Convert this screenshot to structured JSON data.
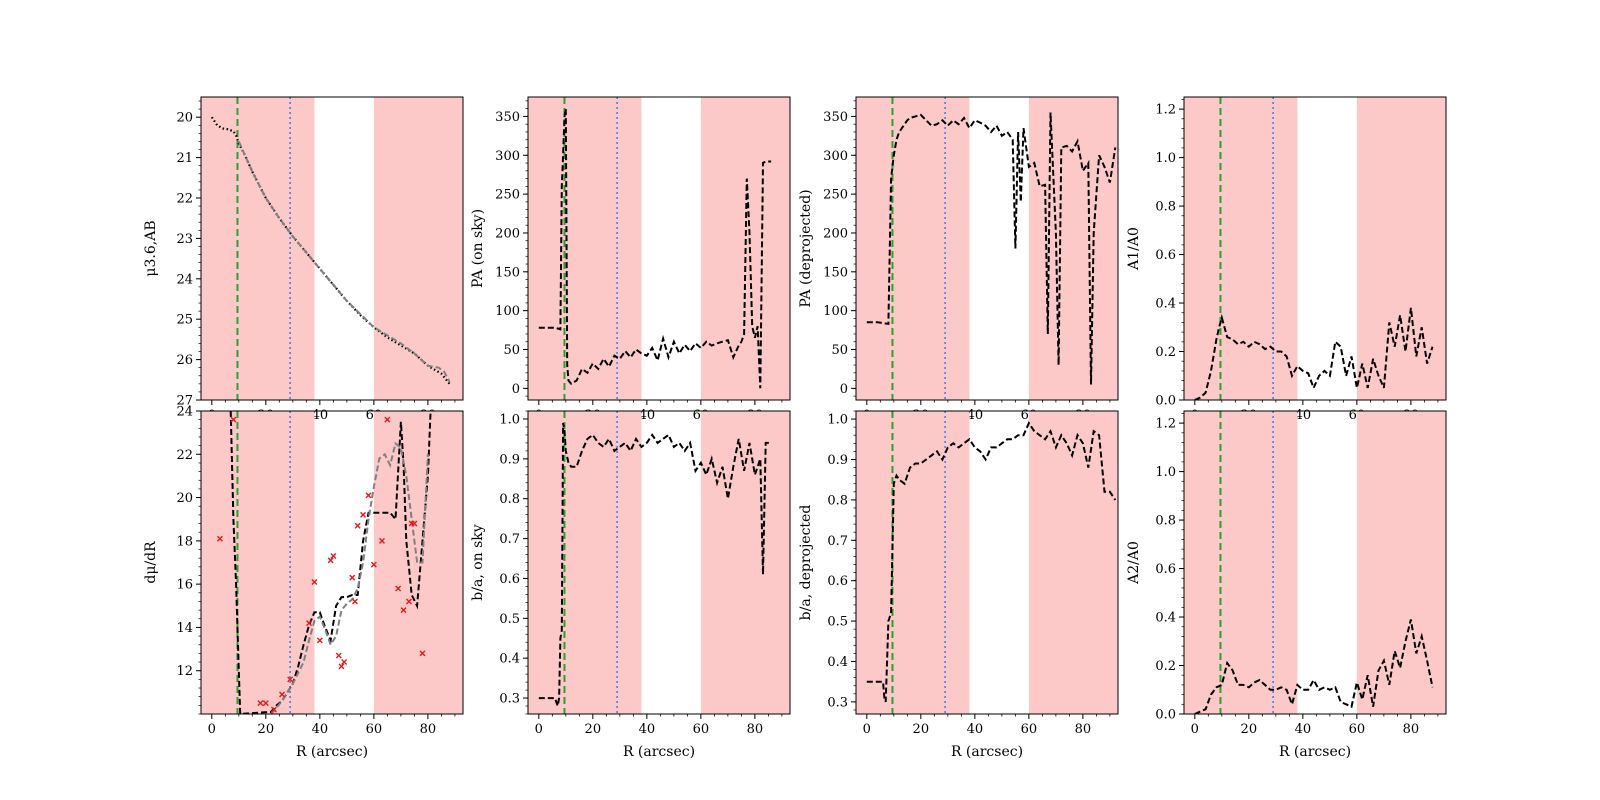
{
  "figure": {
    "common_xlabel": "R (arcsec)",
    "shade_color": "#fcc8c8",
    "green_line_color": "#2ca02c",
    "blue_line_color": "#4a7fe0",
    "markers": {
      "green_dashed_R": 9.5,
      "blue_dotted_R": 29
    },
    "shaded_R_ranges": [
      [
        -4,
        38
      ],
      [
        60,
        93
      ]
    ]
  },
  "chart_data": [
    {
      "id": "mu",
      "type": "line",
      "ylabel": "μ3.6,AB",
      "xlim": [
        -4,
        93
      ],
      "ylim": [
        27,
        19.5
      ],
      "yticks": [
        20,
        21,
        22,
        23,
        24,
        25,
        26,
        27
      ],
      "xticks": [
        0,
        20,
        40,
        60,
        80
      ],
      "show_xlabel": false,
      "series": [
        {
          "style": "dotted-black",
          "x": [
            0,
            2,
            4,
            6,
            8,
            9,
            10,
            12,
            15,
            20,
            25,
            30,
            35,
            40,
            45,
            50,
            55,
            60,
            65,
            70,
            75,
            80,
            85,
            88
          ],
          "y": [
            20.0,
            20.2,
            20.28,
            20.3,
            20.35,
            20.45,
            20.65,
            20.9,
            21.35,
            22.0,
            22.5,
            22.95,
            23.35,
            23.75,
            24.15,
            24.55,
            24.9,
            25.2,
            25.45,
            25.65,
            25.85,
            26.15,
            26.35,
            26.6
          ]
        },
        {
          "style": "dashed-gray",
          "x": [
            10,
            15,
            20,
            25,
            30,
            40,
            50,
            60,
            70,
            75,
            80,
            84,
            86,
            88
          ],
          "y": [
            20.6,
            21.35,
            22.0,
            22.5,
            22.95,
            23.75,
            24.55,
            25.2,
            25.6,
            25.85,
            26.15,
            26.2,
            26.3,
            26.55
          ]
        }
      ]
    },
    {
      "id": "pa_sky",
      "type": "line",
      "ylabel": "PA (on sky)",
      "xlim": [
        -4,
        93
      ],
      "ylim": [
        -15,
        375
      ],
      "yticks": [
        0,
        50,
        100,
        150,
        200,
        250,
        300,
        350
      ],
      "xticks": [
        0,
        20,
        40,
        60,
        80
      ],
      "show_xlabel": false,
      "series": [
        {
          "style": "dashed-black",
          "x": [
            0,
            2,
            4,
            6,
            7,
            8,
            8.5,
            9,
            9.5,
            10,
            10.5,
            11,
            12,
            14,
            16,
            18,
            20,
            22,
            24,
            26,
            28,
            30,
            32,
            34,
            36,
            38,
            40,
            42,
            44,
            46,
            48,
            50,
            52,
            54,
            56,
            58,
            60,
            62,
            64,
            66,
            68,
            70,
            72,
            74,
            75,
            76,
            77,
            78,
            79,
            80,
            81,
            82,
            83,
            84,
            86
          ],
          "y": [
            78,
            78,
            78,
            78,
            77,
            76,
            260,
            300,
            350,
            360,
            30,
            10,
            6,
            10,
            25,
            20,
            32,
            25,
            38,
            28,
            42,
            38,
            48,
            40,
            50,
            45,
            42,
            52,
            36,
            64,
            40,
            60,
            45,
            56,
            48,
            58,
            52,
            60,
            55,
            58,
            60,
            62,
            40,
            55,
            60,
            70,
            270,
            200,
            80,
            65,
            80,
            0,
            290,
            292,
            292
          ]
        }
      ]
    },
    {
      "id": "pa_dep",
      "type": "line",
      "ylabel": "PA (deprojected)",
      "xlim": [
        -4,
        93
      ],
      "ylim": [
        -15,
        375
      ],
      "yticks": [
        0,
        50,
        100,
        150,
        200,
        250,
        300,
        350
      ],
      "xticks": [
        0,
        20,
        40,
        60,
        80
      ],
      "show_xlabel": false,
      "series": [
        {
          "style": "dashed-black",
          "x": [
            0,
            2,
            4,
            6,
            8,
            9,
            10,
            11,
            12,
            13,
            14,
            15,
            16,
            18,
            20,
            22,
            24,
            26,
            28,
            30,
            32,
            34,
            36,
            38,
            40,
            42,
            44,
            46,
            48,
            50,
            52,
            54,
            55,
            56,
            57,
            58,
            60,
            62,
            64,
            66,
            67,
            68,
            70,
            71,
            72,
            74,
            76,
            78,
            80,
            82,
            83,
            84,
            86,
            88,
            90,
            92
          ],
          "y": [
            85,
            85,
            85,
            84,
            83,
            270,
            300,
            320,
            330,
            335,
            340,
            345,
            348,
            350,
            352,
            345,
            338,
            340,
            345,
            338,
            345,
            340,
            348,
            335,
            345,
            342,
            338,
            330,
            338,
            325,
            330,
            320,
            180,
            330,
            240,
            335,
            285,
            290,
            260,
            262,
            70,
            355,
            200,
            30,
            310,
            312,
            305,
            318,
            280,
            290,
            5,
            200,
            300,
            285,
            265,
            310
          ]
        }
      ]
    },
    {
      "id": "a1",
      "type": "line",
      "ylabel": "A1/A0",
      "xlim": [
        -4,
        93
      ],
      "ylim": [
        0,
        1.25
      ],
      "yticks": [
        0.0,
        0.2,
        0.4,
        0.6,
        0.8,
        1.0,
        1.2
      ],
      "xticks": [
        0,
        20,
        40,
        60,
        80
      ],
      "show_xlabel": false,
      "series": [
        {
          "style": "dashed-black",
          "x": [
            0,
            2,
            4,
            6,
            8,
            9,
            10,
            12,
            14,
            16,
            18,
            20,
            22,
            24,
            26,
            28,
            30,
            32,
            34,
            36,
            38,
            40,
            42,
            44,
            46,
            48,
            50,
            52,
            54,
            56,
            58,
            60,
            62,
            64,
            66,
            68,
            70,
            72,
            74,
            76,
            78,
            80,
            82,
            84,
            86,
            88
          ],
          "y": [
            0.0,
            0.01,
            0.03,
            0.12,
            0.25,
            0.3,
            0.34,
            0.26,
            0.25,
            0.23,
            0.24,
            0.22,
            0.24,
            0.23,
            0.21,
            0.22,
            0.2,
            0.2,
            0.18,
            0.1,
            0.14,
            0.12,
            0.11,
            0.05,
            0.1,
            0.12,
            0.1,
            0.24,
            0.22,
            0.1,
            0.18,
            0.05,
            0.15,
            0.05,
            0.17,
            0.1,
            0.05,
            0.32,
            0.22,
            0.35,
            0.2,
            0.38,
            0.18,
            0.3,
            0.15,
            0.22
          ]
        }
      ]
    },
    {
      "id": "dmu",
      "type": "line",
      "ylabel": "dμ/dR",
      "xlim": [
        -4,
        93
      ],
      "ylim": [
        10,
        24
      ],
      "yticks": [
        12,
        14,
        16,
        18,
        20,
        22,
        24
      ],
      "xticks": [
        0,
        20,
        40,
        60,
        80
      ],
      "show_xlabel": true,
      "series": [
        {
          "style": "dashed-black",
          "x": [
            7,
            8,
            9,
            10,
            10.5,
            22,
            24,
            26,
            28,
            30,
            32,
            34,
            36,
            38,
            40,
            42,
            44,
            46,
            48,
            50,
            52,
            54,
            56,
            58,
            60,
            62,
            64,
            66,
            68,
            70,
            71,
            72,
            74,
            76,
            78,
            80,
            81
          ],
          "y": [
            24,
            19,
            16,
            12,
            10,
            10.1,
            10.4,
            10.6,
            11.0,
            11.4,
            12.2,
            13.2,
            14.1,
            14.7,
            14.7,
            14.0,
            13.4,
            15.0,
            15.4,
            15.4,
            15.5,
            15.5,
            18.0,
            19.3,
            19.3,
            19.3,
            19.3,
            19.3,
            19.0,
            23.5,
            21.5,
            18.0,
            15.5,
            15.0,
            18.0,
            21.0,
            24
          ]
        },
        {
          "style": "dashed-gray",
          "x": [
            22,
            26,
            30,
            34,
            36,
            38,
            40,
            42,
            44,
            46,
            48,
            50,
            52,
            54,
            56,
            58,
            60,
            62,
            64,
            66,
            68,
            70,
            72,
            74,
            76,
            78,
            80
          ],
          "y": [
            10.0,
            10.6,
            11.4,
            12.4,
            13.4,
            14.3,
            14.5,
            13.9,
            13.2,
            13.6,
            14.8,
            15.1,
            15.3,
            15.8,
            17.0,
            19.0,
            20.5,
            21.8,
            22.0,
            21.5,
            22.5,
            22.3,
            21.0,
            19.0,
            17.0,
            17.0,
            22.0
          ]
        }
      ],
      "scatter": {
        "style": "red-x",
        "x": [
          3,
          8,
          18,
          20,
          23,
          26,
          29,
          36,
          38,
          40,
          44,
          45,
          47,
          48,
          49,
          52,
          53,
          54,
          56,
          58,
          60,
          63,
          65,
          69,
          71,
          73,
          74,
          75,
          78
        ],
        "y": [
          18.1,
          23.6,
          10.5,
          10.5,
          10.2,
          10.9,
          11.6,
          14.2,
          16.1,
          13.4,
          17.1,
          17.3,
          12.7,
          12.2,
          12.4,
          16.3,
          15.2,
          18.7,
          19.2,
          20.1,
          16.9,
          18.0,
          23.6,
          15.8,
          14.8,
          15.2,
          18.8,
          18.8,
          12.8
        ]
      }
    },
    {
      "id": "ba_sky",
      "type": "line",
      "ylabel": "b/a, on sky",
      "xlim": [
        -4,
        93
      ],
      "ylim": [
        0.26,
        1.02
      ],
      "yticks": [
        0.3,
        0.4,
        0.5,
        0.6,
        0.7,
        0.8,
        0.9,
        1.0
      ],
      "xticks": [
        0,
        20,
        40,
        60,
        80
      ],
      "show_xlabel": true,
      "series": [
        {
          "style": "dashed-black",
          "x": [
            0,
            2,
            4,
            6,
            7,
            7.5,
            8,
            8.5,
            9,
            9.5,
            10,
            11,
            12,
            14,
            16,
            18,
            20,
            22,
            24,
            26,
            28,
            30,
            32,
            34,
            36,
            38,
            40,
            42,
            44,
            46,
            48,
            50,
            52,
            54,
            56,
            58,
            60,
            62,
            64,
            66,
            68,
            70,
            72,
            74,
            76,
            78,
            80,
            82,
            83,
            84,
            86
          ],
          "y": [
            0.3,
            0.3,
            0.3,
            0.3,
            0.28,
            0.3,
            0.45,
            0.47,
            0.99,
            0.97,
            0.92,
            0.89,
            0.88,
            0.88,
            0.92,
            0.95,
            0.96,
            0.94,
            0.93,
            0.95,
            0.92,
            0.93,
            0.94,
            0.92,
            0.95,
            0.93,
            0.94,
            0.96,
            0.94,
            0.95,
            0.96,
            0.93,
            0.94,
            0.92,
            0.94,
            0.87,
            0.89,
            0.86,
            0.9,
            0.84,
            0.88,
            0.8,
            0.88,
            0.95,
            0.87,
            0.94,
            0.86,
            0.9,
            0.61,
            0.94,
            0.94
          ]
        }
      ]
    },
    {
      "id": "ba_dep",
      "type": "line",
      "ylabel": "b/a, deprojected",
      "xlim": [
        -4,
        93
      ],
      "ylim": [
        0.27,
        1.02
      ],
      "yticks": [
        0.3,
        0.4,
        0.5,
        0.6,
        0.7,
        0.8,
        0.9,
        1.0
      ],
      "xticks": [
        0,
        20,
        40,
        60,
        80
      ],
      "show_xlabel": true,
      "series": [
        {
          "style": "dashed-black",
          "x": [
            0,
            2,
            4,
            6,
            6.5,
            7,
            8,
            9,
            10,
            11,
            12,
            14,
            16,
            18,
            20,
            22,
            24,
            26,
            28,
            30,
            32,
            34,
            36,
            38,
            40,
            42,
            44,
            46,
            48,
            50,
            52,
            54,
            56,
            58,
            60,
            62,
            64,
            66,
            68,
            70,
            72,
            74,
            76,
            78,
            80,
            82,
            84,
            86,
            88,
            90,
            92
          ],
          "y": [
            0.35,
            0.35,
            0.35,
            0.35,
            0.31,
            0.3,
            0.5,
            0.52,
            0.84,
            0.86,
            0.85,
            0.84,
            0.88,
            0.89,
            0.89,
            0.9,
            0.91,
            0.92,
            0.9,
            0.93,
            0.94,
            0.93,
            0.94,
            0.95,
            0.93,
            0.92,
            0.9,
            0.93,
            0.93,
            0.94,
            0.95,
            0.95,
            0.96,
            0.96,
            0.99,
            0.97,
            0.96,
            0.95,
            0.97,
            0.93,
            0.96,
            0.94,
            0.91,
            0.96,
            0.94,
            0.88,
            0.97,
            0.96,
            0.82,
            0.82,
            0.8
          ]
        }
      ]
    },
    {
      "id": "a2",
      "type": "line",
      "ylabel": "A2/A0",
      "xlim": [
        -4,
        93
      ],
      "ylim": [
        0,
        1.25
      ],
      "yticks": [
        0.0,
        0.2,
        0.4,
        0.6,
        0.8,
        1.0,
        1.2
      ],
      "xticks": [
        0,
        20,
        40,
        60,
        80
      ],
      "show_xlabel": true,
      "series": [
        {
          "style": "dashed-black",
          "x": [
            0,
            2,
            4,
            6,
            8,
            10,
            12,
            14,
            16,
            18,
            20,
            22,
            24,
            26,
            28,
            30,
            32,
            34,
            36,
            38,
            40,
            42,
            44,
            46,
            48,
            50,
            52,
            54,
            56,
            58,
            60,
            62,
            64,
            66,
            68,
            70,
            72,
            74,
            76,
            78,
            80,
            82,
            84,
            86,
            88
          ],
          "y": [
            0.0,
            0.01,
            0.02,
            0.08,
            0.11,
            0.12,
            0.21,
            0.18,
            0.12,
            0.12,
            0.11,
            0.13,
            0.14,
            0.12,
            0.1,
            0.1,
            0.11,
            0.1,
            0.04,
            0.12,
            0.1,
            0.1,
            0.14,
            0.1,
            0.11,
            0.1,
            0.11,
            0.05,
            0.04,
            0.03,
            0.13,
            0.06,
            0.16,
            0.03,
            0.18,
            0.22,
            0.12,
            0.26,
            0.19,
            0.3,
            0.39,
            0.25,
            0.32,
            0.22,
            0.11
          ]
        }
      ]
    }
  ]
}
